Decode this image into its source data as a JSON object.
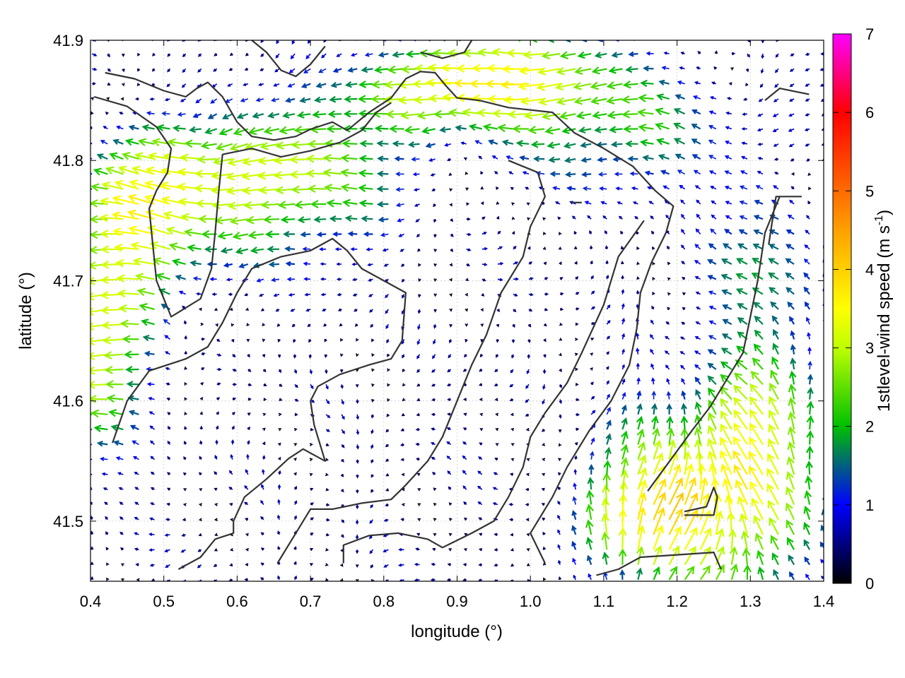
{
  "chart_data": {
    "type": "vector-field",
    "xlabel": "longitude (°)",
    "ylabel": "latitude (°)",
    "colorbar_label": "1stlevel-wind speed (m s",
    "colorbar_label_sup": "-1",
    "colorbar_label_end": ")",
    "xlim": [
      0.4,
      1.4
    ],
    "ylim": [
      41.45,
      41.9
    ],
    "x_ticks": [
      0.4,
      0.5,
      0.6,
      0.7,
      0.8,
      0.9,
      1.0,
      1.1,
      1.2,
      1.3,
      1.4
    ],
    "x_tick_labels": [
      "0.4",
      "0.5",
      "0.6",
      "0.7",
      "0.8",
      "0.9",
      "1.0",
      "1.1",
      "1.2",
      "1.3",
      "1.4"
    ],
    "y_ticks": [
      41.5,
      41.6,
      41.7,
      41.8,
      41.9
    ],
    "y_tick_labels": [
      "41.5",
      "41.6",
      "41.7",
      "41.8",
      "41.9"
    ],
    "colorbar_range": [
      0,
      7
    ],
    "colorbar_ticks": [
      0,
      1,
      2,
      3,
      4,
      5,
      6,
      7
    ],
    "colorbar_tick_labels": [
      "0",
      "1",
      "2",
      "3",
      "4",
      "5",
      "6",
      "7"
    ],
    "colormap": [
      "#000000",
      "#0000ff",
      "#00c000",
      "#bfff00",
      "#ffff00",
      "#ffa000",
      "#ff0000",
      "#ff00ff"
    ],
    "grid": true,
    "contour_color": "#333333",
    "contours": [
      [
        [
          0.42,
          41.873
        ],
        [
          0.46,
          41.868
        ],
        [
          0.5,
          41.858
        ],
        [
          0.53,
          41.853
        ],
        [
          0.545,
          41.86
        ],
        [
          0.56,
          41.865
        ],
        [
          0.58,
          41.853
        ],
        [
          0.6,
          41.832
        ],
        [
          0.62,
          41.82
        ],
        [
          0.65,
          41.817
        ],
        [
          0.68,
          41.82
        ],
        [
          0.7,
          41.826
        ],
        [
          0.73,
          41.832
        ],
        [
          0.75,
          41.825
        ],
        [
          0.78,
          41.84
        ],
        [
          0.81,
          41.852
        ],
        [
          0.83,
          41.868
        ],
        [
          0.85,
          41.874
        ],
        [
          0.87,
          41.873
        ],
        [
          0.885,
          41.862
        ],
        [
          0.9,
          41.852
        ],
        [
          0.93,
          41.85
        ],
        [
          0.97,
          41.844
        ],
        [
          1.0,
          41.842
        ],
        [
          1.03,
          41.84
        ],
        [
          1.06,
          41.823
        ],
        [
          1.1,
          41.81
        ],
        [
          1.14,
          41.795
        ],
        [
          1.17,
          41.775
        ],
        [
          1.195,
          41.762
        ],
        [
          1.185,
          41.74
        ],
        [
          1.165,
          41.715
        ],
        [
          1.15,
          41.69
        ],
        [
          1.145,
          41.66
        ],
        [
          1.135,
          41.63
        ],
        [
          1.11,
          41.6
        ],
        [
          1.08,
          41.575
        ],
        [
          1.05,
          41.545
        ],
        [
          1.03,
          41.52
        ],
        [
          1.0,
          41.49
        ],
        [
          1.02,
          41.465
        ]
      ],
      [
        [
          0.405,
          41.853
        ],
        [
          0.45,
          41.845
        ],
        [
          0.49,
          41.828
        ],
        [
          0.51,
          41.81
        ],
        [
          0.505,
          41.79
        ],
        [
          0.49,
          41.775
        ],
        [
          0.48,
          41.76
        ],
        [
          0.485,
          41.73
        ],
        [
          0.49,
          41.7
        ],
        [
          0.51,
          41.67
        ],
        [
          0.55,
          41.685
        ],
        [
          0.565,
          41.71
        ],
        [
          0.57,
          41.74
        ],
        [
          0.575,
          41.775
        ],
        [
          0.58,
          41.805
        ],
        [
          0.62,
          41.81
        ],
        [
          0.66,
          41.803
        ],
        [
          0.7,
          41.808
        ],
        [
          0.74,
          41.815
        ],
        [
          0.77,
          41.825
        ],
        [
          0.79,
          41.84
        ],
        [
          0.81,
          41.848
        ]
      ],
      [
        [
          0.43,
          41.565
        ],
        [
          0.45,
          41.6
        ],
        [
          0.48,
          41.625
        ],
        [
          0.53,
          41.635
        ],
        [
          0.56,
          41.645
        ],
        [
          0.58,
          41.665
        ],
        [
          0.6,
          41.69
        ],
        [
          0.62,
          41.71
        ],
        [
          0.66,
          41.72
        ],
        [
          0.7,
          41.725
        ],
        [
          0.73,
          41.735
        ],
        [
          0.75,
          41.725
        ],
        [
          0.77,
          41.71
        ],
        [
          0.8,
          41.7
        ],
        [
          0.83,
          41.69
        ],
        [
          0.825,
          41.65
        ],
        [
          0.81,
          41.635
        ],
        [
          0.78,
          41.63
        ],
        [
          0.74,
          41.622
        ],
        [
          0.71,
          41.612
        ],
        [
          0.7,
          41.6
        ],
        [
          0.705,
          41.58
        ],
        [
          0.715,
          41.56
        ],
        [
          0.72,
          41.55
        ],
        [
          0.69,
          41.56
        ],
        [
          0.67,
          41.552
        ],
        [
          0.64,
          41.535
        ],
        [
          0.61,
          41.52
        ],
        [
          0.595,
          41.5
        ],
        [
          0.595,
          41.49
        ],
        [
          0.57,
          41.485
        ],
        [
          0.55,
          41.47
        ],
        [
          0.52,
          41.46
        ]
      ],
      [
        [
          0.655,
          41.465
        ],
        [
          0.68,
          41.49
        ],
        [
          0.7,
          41.51
        ],
        [
          0.73,
          41.51
        ],
        [
          0.77,
          41.515
        ],
        [
          0.81,
          41.518
        ],
        [
          0.83,
          41.53
        ],
        [
          0.86,
          41.55
        ],
        [
          0.88,
          41.57
        ],
        [
          0.9,
          41.6
        ],
        [
          0.92,
          41.63
        ],
        [
          0.94,
          41.655
        ],
        [
          0.96,
          41.69
        ],
        [
          0.99,
          41.72
        ],
        [
          1.0,
          41.745
        ],
        [
          1.02,
          41.77
        ],
        [
          1.01,
          41.79
        ],
        [
          0.97,
          41.8
        ]
      ],
      [
        [
          0.745,
          41.465
        ],
        [
          0.745,
          41.48
        ],
        [
          0.78,
          41.488
        ],
        [
          0.82,
          41.49
        ],
        [
          0.86,
          41.485
        ],
        [
          0.88,
          41.478
        ],
        [
          0.92,
          41.49
        ],
        [
          0.95,
          41.5
        ],
        [
          0.97,
          41.52
        ],
        [
          0.99,
          41.545
        ],
        [
          1.0,
          41.57
        ],
        [
          1.02,
          41.59
        ],
        [
          1.05,
          41.615
        ],
        [
          1.07,
          41.64
        ],
        [
          1.1,
          41.68
        ],
        [
          1.12,
          41.72
        ],
        [
          1.155,
          41.75
        ]
      ],
      [
        [
          1.09,
          41.455
        ],
        [
          1.12,
          41.46
        ],
        [
          1.15,
          41.47
        ],
        [
          1.2,
          41.472
        ],
        [
          1.25,
          41.474
        ],
        [
          1.26,
          41.46
        ]
      ],
      [
        [
          1.21,
          41.508
        ],
        [
          1.24,
          41.512
        ],
        [
          1.25,
          41.528
        ],
        [
          1.255,
          41.52
        ],
        [
          1.25,
          41.505
        ],
        [
          1.21,
          41.505
        ]
      ],
      [
        [
          1.34,
          41.77
        ],
        [
          1.32,
          41.74
        ],
        [
          1.31,
          41.7
        ],
        [
          1.3,
          41.67
        ],
        [
          1.29,
          41.64
        ],
        [
          1.27,
          41.62
        ],
        [
          1.245,
          41.595
        ],
        [
          1.22,
          41.575
        ],
        [
          1.19,
          41.55
        ],
        [
          1.16,
          41.525
        ]
      ],
      [
        [
          1.37,
          41.77
        ],
        [
          1.335,
          41.77
        ],
        [
          1.325,
          41.73
        ]
      ],
      [
        [
          1.32,
          41.85
        ],
        [
          1.34,
          41.86
        ],
        [
          1.38,
          41.855
        ]
      ],
      [
        [
          0.62,
          41.9
        ],
        [
          0.64,
          41.89
        ],
        [
          0.66,
          41.875
        ],
        [
          0.68,
          41.87
        ],
        [
          0.7,
          41.88
        ],
        [
          0.72,
          41.895
        ]
      ],
      [
        [
          0.85,
          41.89
        ],
        [
          0.88,
          41.885
        ],
        [
          0.91,
          41.89
        ],
        [
          0.92,
          41.9
        ]
      ],
      [
        [
          1.055,
          41.765
        ],
        [
          1.07,
          41.765
        ]
      ]
    ],
    "wind_field": {
      "nx": 48,
      "ny": 37,
      "speed_ramp": [
        0,
        1,
        2,
        3,
        4,
        5,
        6,
        7
      ],
      "notes": "strong westward winds (2–3.5 m/s) over the NW valleys, weak (<1 m/s) winds in the central basin, northward winds 1.5–3 m/s in the SE corner"
    }
  }
}
